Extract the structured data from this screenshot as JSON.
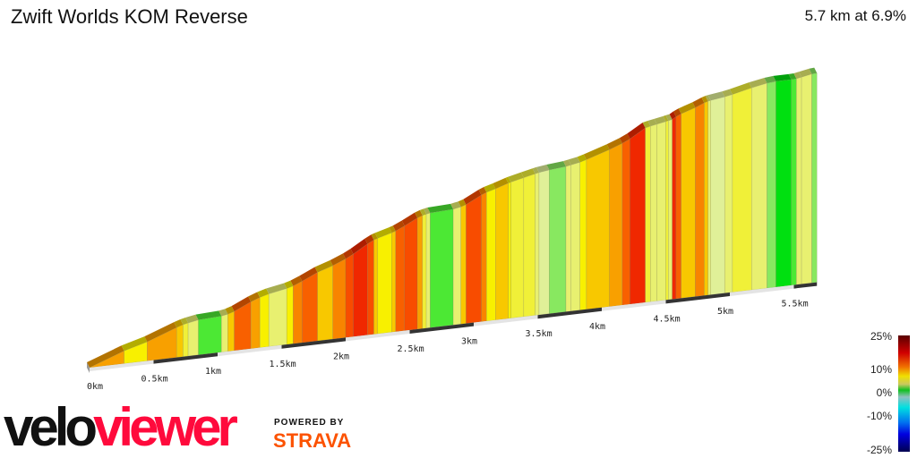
{
  "header": {
    "title": "Zwift Worlds KOM Reverse",
    "summary": "5.7 km at 6.9%"
  },
  "branding": {
    "logo_part1": "velo",
    "logo_part2": "viewer",
    "powered_by": "POWERED BY",
    "partner": "STRAVA",
    "logo_red": "#ff0a3c",
    "partner_orange": "#fc5200"
  },
  "colorbar": {
    "labels": [
      "25%",
      "10%",
      "0%",
      "-10%",
      "-25%"
    ]
  },
  "chart_data": {
    "type": "area",
    "title": "Zwift Worlds KOM Reverse",
    "xlabel": "",
    "ylabel": "",
    "distance_km": 5.7,
    "avg_gradient_pct": 6.9,
    "x_ticks": [
      "0km",
      "0.5km",
      "1km",
      "1.5km",
      "2km",
      "2.5km",
      "3km",
      "3.5km",
      "4km",
      "4.5km",
      "5km",
      "5.5km"
    ],
    "gradient_color_scale": {
      "min": -25,
      "max": 25
    },
    "segments": [
      {
        "end_km": 0.27,
        "grade": 8
      },
      {
        "end_km": 0.45,
        "grade": 6
      },
      {
        "end_km": 0.68,
        "grade": 8
      },
      {
        "end_km": 0.73,
        "grade": 7
      },
      {
        "end_km": 0.77,
        "grade": 5
      },
      {
        "end_km": 0.85,
        "grade": 4
      },
      {
        "end_km": 1.03,
        "grade": 1
      },
      {
        "end_km": 1.08,
        "grade": 4
      },
      {
        "end_km": 1.13,
        "grade": 7
      },
      {
        "end_km": 1.26,
        "grade": 10
      },
      {
        "end_km": 1.33,
        "grade": 8
      },
      {
        "end_km": 1.4,
        "grade": 6
      },
      {
        "end_km": 1.54,
        "grade": 4
      },
      {
        "end_km": 1.59,
        "grade": 6
      },
      {
        "end_km": 1.66,
        "grade": 9
      },
      {
        "end_km": 1.78,
        "grade": 10
      },
      {
        "end_km": 1.9,
        "grade": 7
      },
      {
        "end_km": 2.0,
        "grade": 9
      },
      {
        "end_km": 2.06,
        "grade": 11
      },
      {
        "end_km": 2.17,
        "grade": 13
      },
      {
        "end_km": 2.22,
        "grade": 11
      },
      {
        "end_km": 2.25,
        "grade": 7
      },
      {
        "end_km": 2.36,
        "grade": 6
      },
      {
        "end_km": 2.39,
        "grade": 7
      },
      {
        "end_km": 2.46,
        "grade": 10
      },
      {
        "end_km": 2.56,
        "grade": 11
      },
      {
        "end_km": 2.6,
        "grade": 8
      },
      {
        "end_km": 2.63,
        "grade": 5
      },
      {
        "end_km": 2.66,
        "grade": 4
      },
      {
        "end_km": 2.84,
        "grade": 1
      },
      {
        "end_km": 2.9,
        "grade": 4
      },
      {
        "end_km": 2.94,
        "grade": 7
      },
      {
        "end_km": 3.06,
        "grade": 11
      },
      {
        "end_km": 3.1,
        "grade": 9
      },
      {
        "end_km": 3.17,
        "grade": 6
      },
      {
        "end_km": 3.27,
        "grade": 7
      },
      {
        "end_km": 3.29,
        "grade": 6
      },
      {
        "end_km": 3.39,
        "grade": 5
      },
      {
        "end_km": 3.48,
        "grade": 5
      },
      {
        "end_km": 3.51,
        "grade": 4
      },
      {
        "end_km": 3.59,
        "grade": 3
      },
      {
        "end_km": 3.72,
        "grade": 2
      },
      {
        "end_km": 3.76,
        "grade": 4
      },
      {
        "end_km": 3.83,
        "grade": 4
      },
      {
        "end_km": 3.88,
        "grade": 6
      },
      {
        "end_km": 4.06,
        "grade": 7
      },
      {
        "end_km": 4.16,
        "grade": 8
      },
      {
        "end_km": 4.22,
        "grade": 10
      },
      {
        "end_km": 4.34,
        "grade": 13
      },
      {
        "end_km": 4.38,
        "grade": 5
      },
      {
        "end_km": 4.43,
        "grade": 4
      },
      {
        "end_km": 4.5,
        "grade": 4
      },
      {
        "end_km": 4.52,
        "grade": 5
      },
      {
        "end_km": 4.55,
        "grade": 4
      },
      {
        "end_km": 4.58,
        "grade": 13
      },
      {
        "end_km": 4.62,
        "grade": 10
      },
      {
        "end_km": 4.73,
        "grade": 7
      },
      {
        "end_km": 4.8,
        "grade": 9
      },
      {
        "end_km": 4.83,
        "grade": 7
      },
      {
        "end_km": 4.85,
        "grade": 4
      },
      {
        "end_km": 4.96,
        "grade": 3
      },
      {
        "end_km": 5.02,
        "grade": 4
      },
      {
        "end_km": 5.17,
        "grade": 5
      },
      {
        "end_km": 5.29,
        "grade": 4
      },
      {
        "end_km": 5.36,
        "grade": 2
      },
      {
        "end_km": 5.48,
        "grade": 0
      },
      {
        "end_km": 5.52,
        "grade": 1
      },
      {
        "end_km": 5.56,
        "grade": 4
      },
      {
        "end_km": 5.64,
        "grade": 4
      },
      {
        "end_km": 5.68,
        "grade": 2
      }
    ]
  }
}
